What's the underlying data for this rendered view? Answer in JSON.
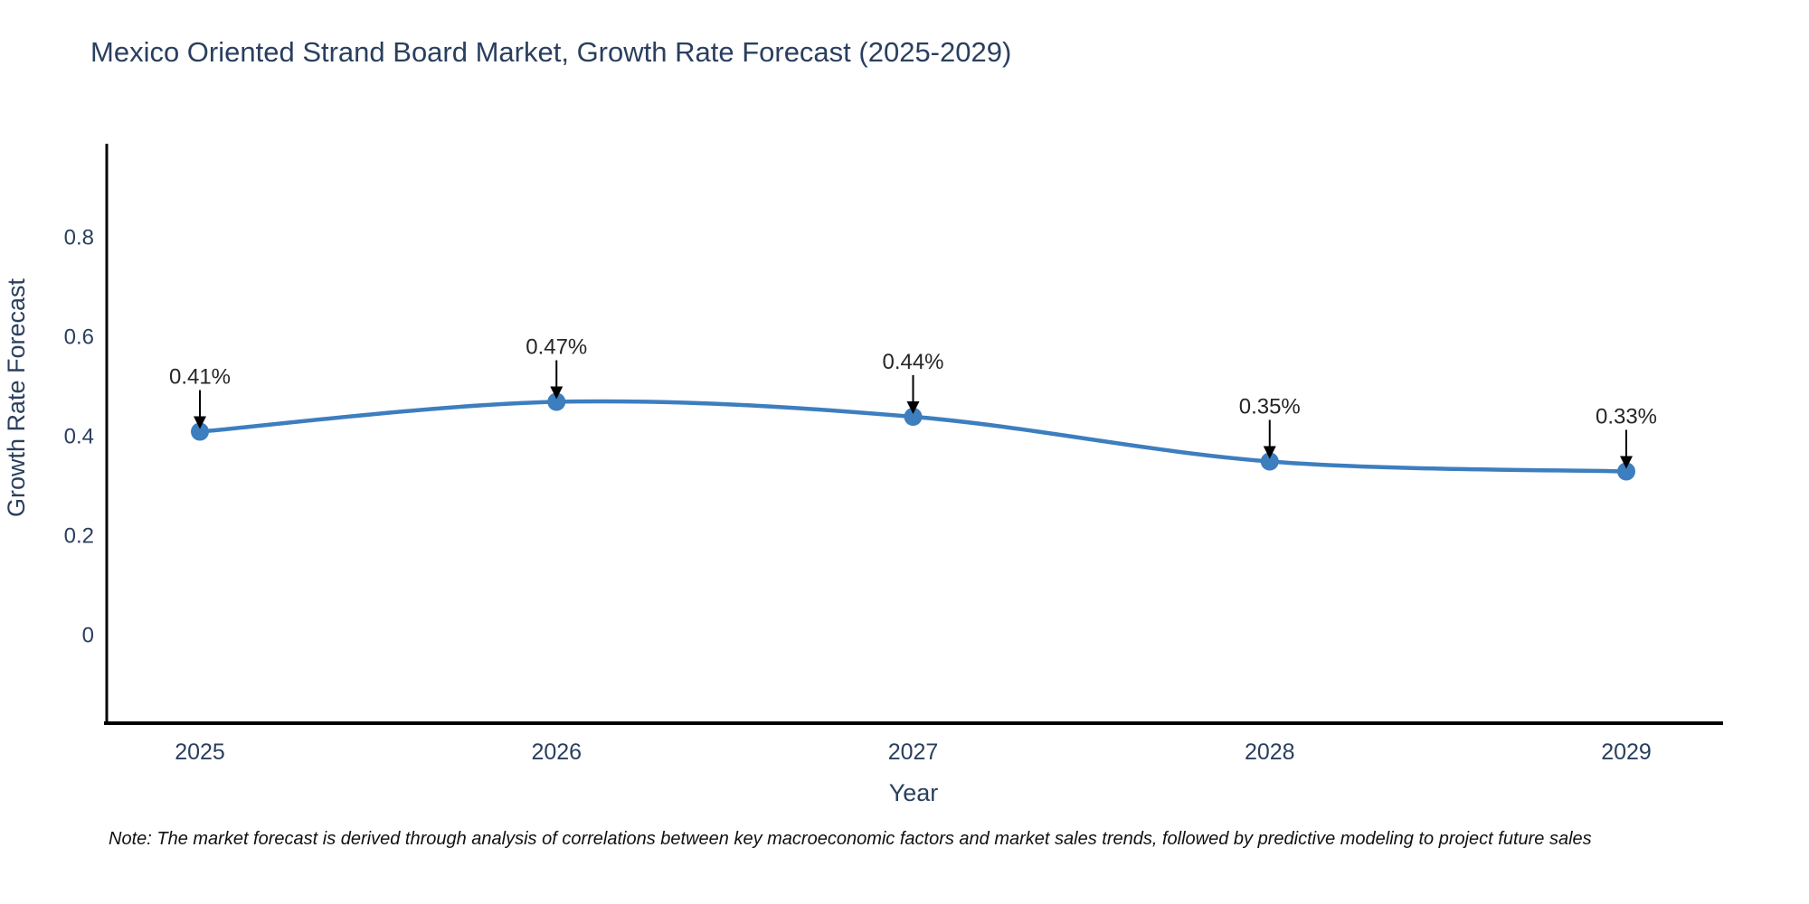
{
  "figure": {
    "title": "Mexico Oriented Strand Board Market, Growth Rate Forecast (2025-2029)",
    "note": "Note: The market forecast is derived through analysis of correlations between key macroeconomic factors and market sales trends, followed by predictive modeling to project future sales"
  },
  "chart_data": {
    "type": "line",
    "title": "Mexico Oriented Strand Board Market, Growth Rate Forecast (2025-2029)",
    "xlabel": "Year",
    "ylabel": "Growth Rate Forecast",
    "categories": [
      "2025",
      "2026",
      "2027",
      "2028",
      "2029"
    ],
    "series": [
      {
        "name": "Growth Rate Forecast",
        "values": [
          0.41,
          0.47,
          0.44,
          0.35,
          0.33
        ],
        "point_labels": [
          "0.41%",
          "0.47%",
          "0.44%",
          "0.35%",
          "0.33%"
        ]
      }
    ],
    "line_shape": "spline",
    "markers": true,
    "annotations_with_arrows": true,
    "ytick_values": [
      0,
      0.2,
      0.4,
      0.6,
      0.8
    ],
    "ytick_labels": [
      "0",
      "0.2",
      "0.4",
      "0.6",
      "0.8"
    ],
    "ylim": [
      -0.18,
      0.99
    ],
    "grid": false,
    "legend": "none",
    "colors": {
      "line": "#3d7ebf",
      "marker": "#3d7ebf",
      "axis": "#000000",
      "axis_text": "#2a3f5f",
      "annotation_text": "#262626",
      "arrow": "#000000",
      "background": "#ffffff"
    }
  }
}
